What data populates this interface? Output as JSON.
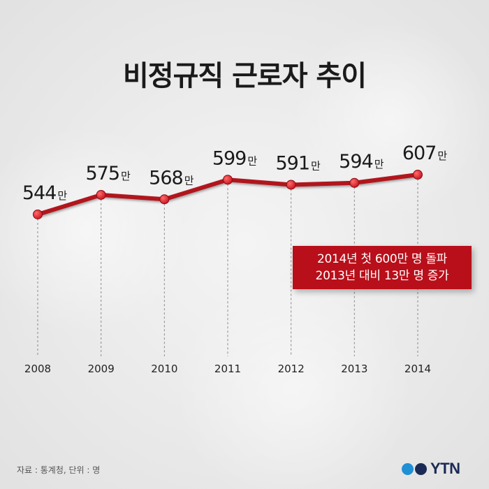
{
  "chart_data": {
    "type": "line",
    "title": "비정규직 근로자 추이",
    "categories": [
      "2008",
      "2009",
      "2010",
      "2011",
      "2012",
      "2013",
      "2014"
    ],
    "values": [
      544,
      575,
      568,
      599,
      591,
      594,
      607
    ],
    "value_labels": [
      "544",
      "575",
      "568",
      "599",
      "591",
      "594",
      "607"
    ],
    "value_suffix": "만",
    "ylim": [
      430,
      690
    ],
    "grid": false,
    "line_color": "#b0121b",
    "marker_color": "#c8141e"
  },
  "callout": {
    "line1": "2014년 첫 600만 명 돌파",
    "line2": "2013년 대비 13만 명 증가",
    "color": "#b80f1a"
  },
  "source": "자료 : 통계청, 단위 : 명",
  "logo": {
    "text": "YTN",
    "colors": [
      "#1f8fd6",
      "#1b2a55"
    ]
  }
}
